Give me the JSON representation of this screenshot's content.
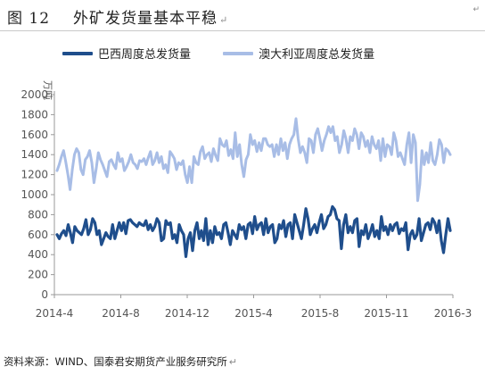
{
  "header": {
    "figure_no": "图 12",
    "title": "外矿发货量基本平稳"
  },
  "footer": {
    "source": "资料来源：WIND、国泰君安期货产业服务研究所"
  },
  "colors": {
    "brazil": "#1f4e8c",
    "australia": "#a8bde6",
    "axis": "#9a9a9a",
    "text": "#555555"
  },
  "chart_data": {
    "type": "line",
    "title": "",
    "unit_label": "万吨",
    "xlabel": "",
    "ylabel": "",
    "ylim": [
      0,
      2000
    ],
    "yticks": [
      0,
      200,
      400,
      600,
      800,
      1000,
      1200,
      1400,
      1600,
      1800,
      2000
    ],
    "x_tick_labels": [
      "2014-4",
      "2014-8",
      "2014-12",
      "2015-4",
      "2015-8",
      "2015-11",
      "2016-3"
    ],
    "grid": false,
    "legend_position": "top",
    "series": [
      {
        "name": "巴西周度总发货量",
        "values": [
          600,
          560,
          610,
          640,
          590,
          700,
          620,
          520,
          680,
          640,
          620,
          600,
          660,
          750,
          600,
          650,
          760,
          720,
          600,
          640,
          500,
          560,
          620,
          580,
          560,
          700,
          560,
          640,
          720,
          640,
          720,
          610,
          740,
          750,
          720,
          700,
          680,
          720,
          700,
          690,
          740,
          650,
          700,
          640,
          680,
          760,
          720,
          540,
          560,
          740,
          700,
          720,
          560,
          600,
          520,
          700,
          640,
          600,
          380,
          560,
          620,
          440,
          640,
          720,
          560,
          640,
          540,
          760,
          500,
          640,
          520,
          680,
          600,
          620,
          560,
          700,
          720,
          620,
          500,
          640,
          600,
          560,
          700,
          650,
          680,
          560,
          700,
          720,
          610,
          780,
          650,
          700,
          720,
          600,
          760,
          620,
          680,
          700,
          520,
          560,
          700,
          660,
          740,
          580,
          700,
          720,
          560,
          800,
          720,
          640,
          560,
          700,
          860,
          760,
          600,
          660,
          700,
          620,
          720,
          800,
          660,
          700,
          780,
          800,
          880,
          850,
          760,
          740,
          460,
          700,
          800,
          620,
          680,
          620,
          740,
          760,
          480,
          640,
          600,
          700,
          560,
          620,
          700,
          580,
          640,
          560,
          780,
          640,
          680,
          600,
          700,
          640,
          700,
          720,
          610,
          660,
          640,
          720,
          450,
          600,
          640,
          560,
          600,
          760,
          540,
          620,
          700,
          720,
          650,
          760,
          720,
          620,
          740,
          540,
          420,
          600,
          760,
          640
        ],
        "color": "#1f4e8c"
      },
      {
        "name": "澳大利亚周度总发货量",
        "values": [
          1240,
          1300,
          1380,
          1440,
          1330,
          1200,
          1050,
          1250,
          1400,
          1460,
          1420,
          1250,
          1200,
          1350,
          1380,
          1440,
          1320,
          1120,
          1260,
          1420,
          1350,
          1300,
          1240,
          1180,
          1330,
          1350,
          1300,
          1260,
          1420,
          1330,
          1360,
          1240,
          1280,
          1330,
          1400,
          1320,
          1300,
          1260,
          1340,
          1330,
          1360,
          1300,
          1370,
          1430,
          1300,
          1340,
          1420,
          1320,
          1380,
          1260,
          1300,
          1220,
          1430,
          1400,
          1360,
          1250,
          1320,
          1300,
          1340,
          1200,
          1120,
          1280,
          1120,
          1380,
          1320,
          1300,
          1430,
          1480,
          1360,
          1400,
          1420,
          1330,
          1460,
          1390,
          1340,
          1560,
          1500,
          1480,
          1540,
          1390,
          1450,
          1360,
          1620,
          1380,
          1500,
          1300,
          1180,
          1350,
          1400,
          1600,
          1500,
          1540,
          1430,
          1520,
          1440,
          1560,
          1560,
          1500,
          1480,
          1500,
          1380,
          1500,
          1400,
          1560,
          1440,
          1520,
          1360,
          1500,
          1560,
          1600,
          1760,
          1560,
          1420,
          1480,
          1420,
          1320,
          1560,
          1540,
          1420,
          1600,
          1660,
          1560,
          1440,
          1540,
          1600,
          1680,
          1620,
          1680,
          1540,
          1580,
          1420,
          1500,
          1640,
          1560,
          1420,
          1580,
          1540,
          1660,
          1600,
          1460,
          1620,
          1580,
          1480,
          1540,
          1420,
          1580,
          1500,
          1460,
          1540,
          1340,
          1560,
          1380,
          1500,
          1480,
          1400,
          1620,
          1540,
          1380,
          1420,
          1360,
          1300,
          1500,
          1620,
          1320,
          1600,
          1520,
          940,
          1100,
          1440,
          1300,
          1420,
          1320,
          1520,
          1340,
          1300,
          1400,
          1550,
          1500,
          1320,
          1460,
          1440,
          1400
        ],
        "color": "#a8bde6"
      }
    ]
  }
}
